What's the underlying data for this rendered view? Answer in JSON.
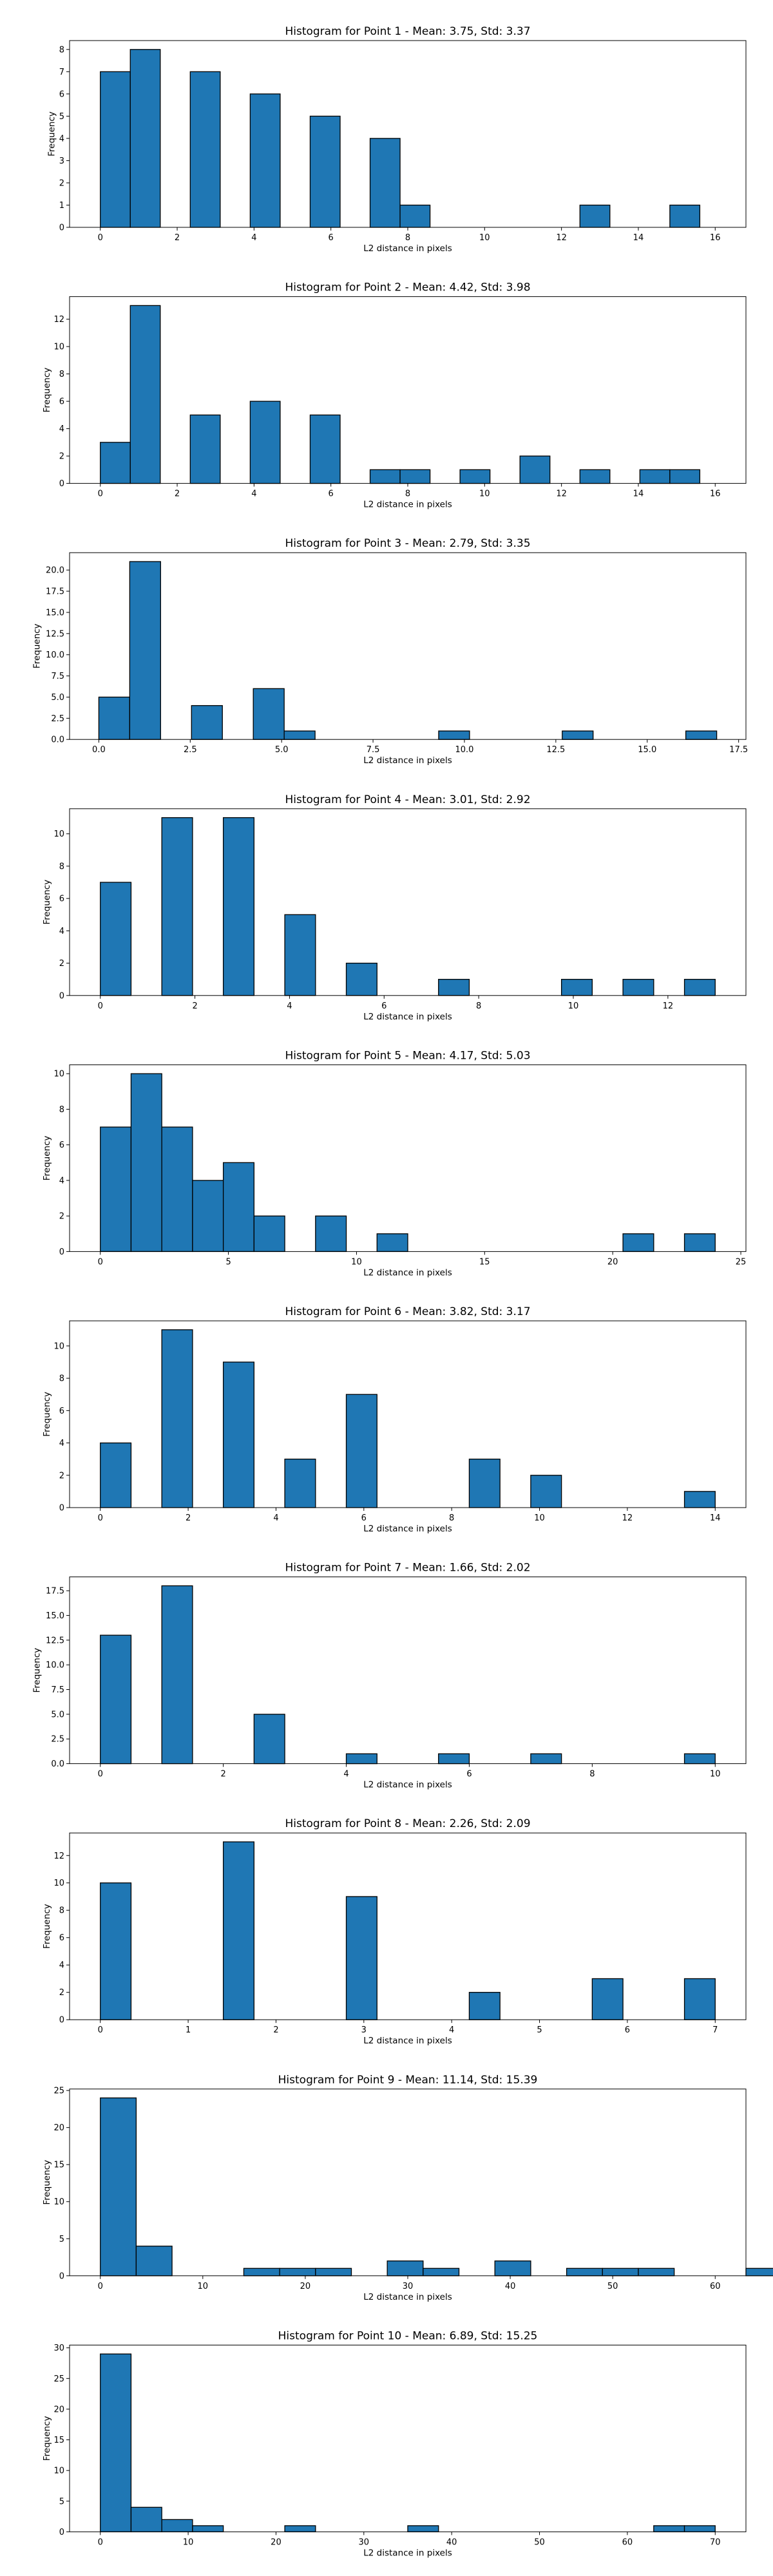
{
  "style": {
    "bar_color": "#1f77b4",
    "edge_color": "#000000"
  },
  "chart_data": [
    {
      "type": "bar",
      "title": "Histogram for Point 1 - Mean: 3.75, Std: 3.37",
      "xlabel": "L2 distance in pixels",
      "ylabel": "Frequency",
      "xlim": [
        -0.8,
        16.8
      ],
      "ylim": [
        0,
        8.4
      ],
      "xticks": [
        0,
        2,
        4,
        6,
        8,
        10,
        12,
        14,
        16
      ],
      "yticks": [
        0,
        1,
        2,
        3,
        4,
        5,
        6,
        7,
        8
      ],
      "xtick_labels": [
        "0",
        "2",
        "4",
        "6",
        "8",
        "10",
        "12",
        "14",
        "16"
      ],
      "ytick_labels": [
        "0",
        "1",
        "2",
        "3",
        "4",
        "5",
        "6",
        "7",
        "8"
      ],
      "bin_edges": [
        0,
        0.78,
        1.56,
        2.34,
        3.12,
        3.9,
        4.68,
        5.46,
        6.24,
        7.02,
        7.8,
        8.58,
        9.36,
        10.14,
        10.92,
        11.7,
        12.48,
        13.26,
        14.04,
        14.82,
        15.6
      ],
      "values": [
        7,
        8,
        0,
        7,
        0,
        6,
        0,
        5,
        0,
        4,
        1,
        0,
        0,
        0,
        0,
        0,
        1,
        0,
        0,
        1
      ]
    },
    {
      "type": "bar",
      "title": "Histogram for Point 2 - Mean: 4.42, Std: 3.98",
      "xlabel": "L2 distance in pixels",
      "ylabel": "Frequency",
      "xlim": [
        -0.8,
        16.8
      ],
      "ylim": [
        0,
        13.65
      ],
      "xticks": [
        0,
        2,
        4,
        6,
        8,
        10,
        12,
        14,
        16
      ],
      "yticks": [
        0,
        2,
        4,
        6,
        8,
        10,
        12
      ],
      "xtick_labels": [
        "0",
        "2",
        "4",
        "6",
        "8",
        "10",
        "12",
        "14",
        "16"
      ],
      "ytick_labels": [
        "0",
        "2",
        "4",
        "6",
        "8",
        "10",
        "12"
      ],
      "bin_edges": [
        0,
        0.78,
        1.56,
        2.34,
        3.12,
        3.9,
        4.68,
        5.46,
        6.24,
        7.02,
        7.8,
        8.58,
        9.36,
        10.14,
        10.92,
        11.7,
        12.48,
        13.26,
        14.04,
        14.82,
        15.6
      ],
      "values": [
        3,
        13,
        0,
        5,
        0,
        6,
        0,
        5,
        0,
        1,
        1,
        0,
        1,
        0,
        2,
        0,
        1,
        0,
        1,
        1
      ]
    },
    {
      "type": "bar",
      "title": "Histogram for Point 3 - Mean: 2.79, Std: 3.35",
      "xlabel": "L2 distance in pixels",
      "ylabel": "Frequency",
      "xlim": [
        -0.8,
        17.7
      ],
      "ylim": [
        0,
        22.05
      ],
      "xticks": [
        0,
        2.5,
        5,
        7.5,
        10,
        12.5,
        15,
        17.5
      ],
      "yticks": [
        0,
        2.5,
        5,
        7.5,
        10,
        12.5,
        15,
        17.5,
        20
      ],
      "xtick_labels": [
        "0.0",
        "2.5",
        "5.0",
        "7.5",
        "10.0",
        "12.5",
        "15.0",
        "17.5"
      ],
      "ytick_labels": [
        "0.0",
        "2.5",
        "5.0",
        "7.5",
        "10.0",
        "12.5",
        "15.0",
        "17.5",
        "20.0"
      ],
      "bin_edges": [
        0,
        0.845,
        1.69,
        2.535,
        3.38,
        4.225,
        5.07,
        5.915,
        6.76,
        7.605,
        8.45,
        9.295,
        10.14,
        10.985,
        11.83,
        12.675,
        13.52,
        14.365,
        15.21,
        16.055,
        16.9
      ],
      "values": [
        5,
        21,
        0,
        4,
        0,
        6,
        1,
        0,
        0,
        0,
        0,
        1,
        0,
        0,
        0,
        1,
        0,
        0,
        0,
        1
      ]
    },
    {
      "type": "bar",
      "title": "Histogram for Point 4 - Mean: 3.01, Std: 2.92",
      "xlabel": "L2 distance in pixels",
      "ylabel": "Frequency",
      "xlim": [
        -0.65,
        13.65
      ],
      "ylim": [
        0,
        11.55
      ],
      "xticks": [
        0,
        2,
        4,
        6,
        8,
        10,
        12
      ],
      "yticks": [
        0,
        2,
        4,
        6,
        8,
        10
      ],
      "xtick_labels": [
        "0",
        "2",
        "4",
        "6",
        "8",
        "10",
        "12"
      ],
      "ytick_labels": [
        "0",
        "2",
        "4",
        "6",
        "8",
        "10"
      ],
      "bin_edges": [
        0,
        0.65,
        1.3,
        1.95,
        2.6,
        3.25,
        3.9,
        4.55,
        5.2,
        5.85,
        6.5,
        7.15,
        7.8,
        8.45,
        9.1,
        9.75,
        10.4,
        11.05,
        11.7,
        12.35,
        13.0
      ],
      "values": [
        7,
        0,
        11,
        0,
        11,
        0,
        5,
        0,
        2,
        0,
        0,
        1,
        0,
        0,
        0,
        1,
        0,
        1,
        0,
        1
      ]
    },
    {
      "type": "bar",
      "title": "Histogram for Point 5 - Mean: 4.17, Std: 5.03",
      "xlabel": "L2 distance in pixels",
      "ylabel": "Frequency",
      "xlim": [
        -1.2,
        25.2
      ],
      "ylim": [
        0,
        10.5
      ],
      "xticks": [
        0,
        5,
        10,
        15,
        20,
        25
      ],
      "yticks": [
        0,
        2,
        4,
        6,
        8,
        10
      ],
      "xtick_labels": [
        "0",
        "5",
        "10",
        "15",
        "20",
        "25"
      ],
      "ytick_labels": [
        "0",
        "2",
        "4",
        "6",
        "8",
        "10"
      ],
      "bin_edges": [
        0,
        1.2,
        2.4,
        3.6,
        4.8,
        6.0,
        7.2,
        8.4,
        9.6,
        10.8,
        12.0,
        13.2,
        14.4,
        15.6,
        16.8,
        18.0,
        19.2,
        20.4,
        21.6,
        22.8,
        24.0
      ],
      "values": [
        7,
        10,
        7,
        4,
        5,
        2,
        0,
        2,
        0,
        1,
        0,
        0,
        0,
        0,
        0,
        0,
        0,
        1,
        0,
        1
      ]
    },
    {
      "type": "bar",
      "title": "Histogram for Point 6 - Mean: 3.82, Std: 3.17",
      "xlabel": "L2 distance in pixels",
      "ylabel": "Frequency",
      "xlim": [
        -0.7,
        14.7
      ],
      "ylim": [
        0,
        11.55
      ],
      "xticks": [
        0,
        2,
        4,
        6,
        8,
        10,
        12,
        14
      ],
      "yticks": [
        0,
        2,
        4,
        6,
        8,
        10
      ],
      "xtick_labels": [
        "0",
        "2",
        "4",
        "6",
        "8",
        "10",
        "12",
        "14"
      ],
      "ytick_labels": [
        "0",
        "2",
        "4",
        "6",
        "8",
        "10"
      ],
      "bin_edges": [
        0,
        0.7,
        1.4,
        2.1,
        2.8,
        3.5,
        4.2,
        4.9,
        5.6,
        6.3,
        7.0,
        7.7,
        8.4,
        9.1,
        9.8,
        10.5,
        11.2,
        11.9,
        12.6,
        13.3,
        14.0
      ],
      "values": [
        4,
        0,
        11,
        0,
        9,
        0,
        3,
        0,
        7,
        0,
        0,
        0,
        3,
        0,
        2,
        0,
        0,
        0,
        0,
        1
      ]
    },
    {
      "type": "bar",
      "title": "Histogram for Point 7 - Mean: 1.66, Std: 2.02",
      "xlabel": "L2 distance in pixels",
      "ylabel": "Frequency",
      "xlim": [
        -0.5,
        10.5
      ],
      "ylim": [
        0,
        18.9
      ],
      "xticks": [
        0,
        2,
        4,
        6,
        8,
        10
      ],
      "yticks": [
        0,
        2.5,
        5,
        7.5,
        10,
        12.5,
        15,
        17.5
      ],
      "xtick_labels": [
        "0",
        "2",
        "4",
        "6",
        "8",
        "10"
      ],
      "ytick_labels": [
        "0.0",
        "2.5",
        "5.0",
        "7.5",
        "10.0",
        "12.5",
        "15.0",
        "17.5"
      ],
      "bin_edges": [
        0,
        0.5,
        1.0,
        1.5,
        2.0,
        2.5,
        3.0,
        3.5,
        4.0,
        4.5,
        5.0,
        5.5,
        6.0,
        6.5,
        7.0,
        7.5,
        8.0,
        8.5,
        9.0,
        9.5,
        10.0
      ],
      "values": [
        13,
        0,
        18,
        0,
        0,
        5,
        0,
        0,
        1,
        0,
        0,
        1,
        0,
        0,
        1,
        0,
        0,
        0,
        0,
        1
      ]
    },
    {
      "type": "bar",
      "title": "Histogram for Point 8 - Mean: 2.26, Std: 2.09",
      "xlabel": "L2 distance in pixels",
      "ylabel": "Frequency",
      "xlim": [
        -0.35,
        7.35
      ],
      "ylim": [
        0,
        13.65
      ],
      "xticks": [
        0,
        1,
        2,
        3,
        4,
        5,
        6,
        7
      ],
      "yticks": [
        0,
        2,
        4,
        6,
        8,
        10,
        12
      ],
      "xtick_labels": [
        "0",
        "1",
        "2",
        "3",
        "4",
        "5",
        "6",
        "7"
      ],
      "ytick_labels": [
        "0",
        "2",
        "4",
        "6",
        "8",
        "10",
        "12"
      ],
      "bin_edges": [
        0,
        0.35,
        0.7,
        1.05,
        1.4,
        1.75,
        2.1,
        2.45,
        2.8,
        3.15,
        3.5,
        3.85,
        4.2,
        4.55,
        4.9,
        5.25,
        5.6,
        5.95,
        6.3,
        6.65,
        7.0
      ],
      "values": [
        10,
        0,
        0,
        0,
        13,
        0,
        0,
        0,
        9,
        0,
        0,
        0,
        2,
        0,
        0,
        0,
        3,
        0,
        0,
        3
      ]
    },
    {
      "type": "bar",
      "title": "Histogram for Point 9 - Mean: 11.14, Std: 15.39",
      "xlabel": "L2 distance in pixels",
      "ylabel": "Frequency",
      "xlim": [
        -3.0,
        63.0
      ],
      "ylim": [
        0,
        25.2
      ],
      "xticks": [
        0,
        10,
        20,
        30,
        40,
        50,
        60
      ],
      "yticks": [
        0,
        5,
        10,
        15,
        20,
        25
      ],
      "xtick_labels": [
        "0",
        "10",
        "20",
        "30",
        "40",
        "50",
        "60"
      ],
      "ytick_labels": [
        "0",
        "5",
        "10",
        "15",
        "20",
        "25"
      ],
      "bin_edges": [
        0,
        3.5,
        7.0,
        10.5,
        14.0,
        17.5,
        21.0,
        24.5,
        28.0,
        31.5,
        35.0,
        38.5,
        42.0,
        45.5,
        49.0,
        52.5,
        56.0,
        59.5,
        63.0,
        66.5,
        70.0
      ],
      "values": [
        24,
        4,
        0,
        0,
        1,
        1,
        1,
        0,
        2,
        1,
        0,
        2,
        0,
        1,
        1,
        1,
        0,
        0,
        1,
        0
      ]
    },
    {
      "type": "bar",
      "title": "Histogram for Point 10 - Mean: 6.89, Std: 15.25",
      "xlabel": "L2 distance in pixels",
      "ylabel": "Frequency",
      "xlim": [
        -3.5,
        73.5
      ],
      "ylim": [
        0,
        30.45
      ],
      "xticks": [
        0,
        10,
        20,
        30,
        40,
        50,
        60,
        70
      ],
      "yticks": [
        0,
        5,
        10,
        15,
        20,
        25,
        30
      ],
      "xtick_labels": [
        "0",
        "10",
        "20",
        "30",
        "40",
        "50",
        "60",
        "70"
      ],
      "ytick_labels": [
        "0",
        "5",
        "10",
        "15",
        "20",
        "25",
        "30"
      ],
      "bin_edges": [
        0,
        3.5,
        7.0,
        10.5,
        14.0,
        17.5,
        21.0,
        24.5,
        28.0,
        31.5,
        35.0,
        38.5,
        42.0,
        45.5,
        49.0,
        52.5,
        56.0,
        59.5,
        63.0,
        66.5,
        70.0
      ],
      "values": [
        29,
        4,
        2,
        1,
        0,
        0,
        1,
        0,
        0,
        0,
        1,
        0,
        0,
        0,
        0,
        0,
        0,
        0,
        1,
        1
      ]
    }
  ]
}
